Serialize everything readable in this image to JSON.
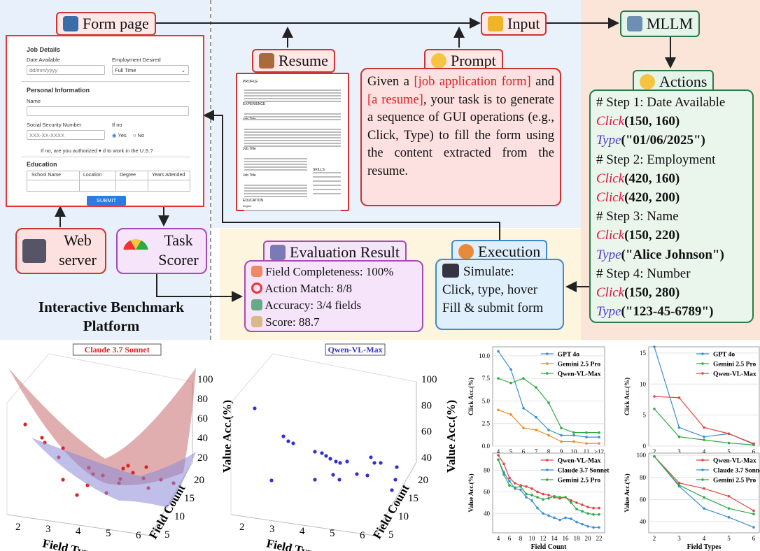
{
  "top": {
    "form_page_label": "Form page",
    "input_label": "Input",
    "mllm_label": "MLLM",
    "resume_label": "Resume",
    "prompt_label": "Prompt",
    "actions_label": "Actions",
    "web_server_label": [
      "Web",
      "server"
    ],
    "task_scorer_label": [
      "Task",
      "Scorer"
    ],
    "evaluation_label": "Evaluation Result",
    "execution_label": "Execution",
    "platform_title": [
      "Interactive Benchmark",
      "Platform"
    ]
  },
  "form": {
    "job_details": "Job Details",
    "date_available": "Date Available",
    "date_placeholder": "dd/mm/yyyy",
    "employment_desired": "Employment Desired",
    "employment_value": "Full Time",
    "personal_information": "Personal Information",
    "name": "Name",
    "ssn": "Social Security Number",
    "ssn_placeholder": "XXX-XX-XXXX",
    "if_no": "If no",
    "yes": "Yes",
    "no": "No",
    "authorized": "If no, are you authorized",
    "authorized_rest": "d to work in the U.S.?",
    "education": "Education",
    "columns": [
      "School Name",
      "Location",
      "Degree",
      "Years Attended"
    ],
    "submit": "SUBMIT"
  },
  "resume_doc": {
    "profile": "PROFILE",
    "experience": "EXPERIENCE",
    "job_title": "Job Title",
    "skills": "SKILLS",
    "education": "EDUCATION",
    "degree": "degree"
  },
  "prompt": {
    "t1": "Given a ",
    "hl1": "[job application form]",
    "t2": " and ",
    "hl2": "[a resume]",
    "t3": ", your task is to generate a sequence of GUI operations (e.g., Click, Type) to fill the form using the content extracted from the resume."
  },
  "actions": [
    {
      "kind": "comment",
      "text": "# Step 1: Date Available"
    },
    {
      "kind": "click",
      "fn": "Click",
      "args": "(150, 160)"
    },
    {
      "kind": "type",
      "fn": "Type",
      "args": "(\"01/06/2025\")"
    },
    {
      "kind": "comment",
      "text": "# Step 2: Employment"
    },
    {
      "kind": "click",
      "fn": "Click",
      "args": "(420, 160)"
    },
    {
      "kind": "click",
      "fn": "Click",
      "args": "(420, 200)"
    },
    {
      "kind": "comment",
      "text": "# Step 3: Name"
    },
    {
      "kind": "click",
      "fn": "Click",
      "args": "(150, 220)"
    },
    {
      "kind": "type",
      "fn": "Type",
      "args": "(\"Alice Johnson\")"
    },
    {
      "kind": "comment",
      "text": "# Step 4: Number"
    },
    {
      "kind": "click",
      "fn": "Click",
      "args": "(150, 280)"
    },
    {
      "kind": "type",
      "fn": "Type",
      "args": "(\"123-45-6789\")"
    }
  ],
  "evaluation": [
    "Field Completeness: 100%",
    "Action Match: 8/8",
    "Accuracy: 3/4 fields",
    "Score: 88.7"
  ],
  "execution": [
    "Simulate:",
    "Click, type, hover",
    "Fill & submit form"
  ],
  "colors": {
    "red": "#e02020",
    "green": "#2b7a4b",
    "purple": "#a44bb5",
    "blue": "#3b8bd0"
  },
  "chart_data": [
    {
      "type": "scatter",
      "title": "Claude 3.7 Sonnet",
      "xlabel": "Field Types",
      "ylabel": "Field Count",
      "zlabel": "Value Acc.(%)",
      "x_ticks": [
        "2",
        "3",
        "4",
        "5",
        "6"
      ],
      "y_ticks": [
        "5",
        "10",
        "15",
        "20"
      ],
      "z_ticks": [
        "20",
        "40",
        "60",
        "80",
        "100"
      ],
      "color": "#e02020"
    },
    {
      "type": "scatter",
      "title": "Qwen-VL-Max",
      "xlabel": "Field Types",
      "ylabel": "Field Count",
      "zlabel": "Value Acc.(%)",
      "x_ticks": [
        "2",
        "3",
        "4",
        "5",
        "6"
      ],
      "y_ticks": [
        "5",
        "10",
        "15",
        "20"
      ],
      "z_ticks": [
        "40",
        "60",
        "80",
        "100"
      ],
      "color": "#3030d0"
    },
    {
      "type": "line",
      "xlabel": "Field Count",
      "ylabel": "Click Acc.(%)",
      "categories": [
        "4",
        "5",
        "6",
        "7",
        "8",
        "9",
        "10",
        "11",
        ">12"
      ],
      "ylim": [
        0,
        11
      ],
      "y_ticks": [
        "0.0",
        "2.5",
        "5.0",
        "7.5",
        "10.0"
      ],
      "series": [
        {
          "name": "GPT 4o",
          "color": "#3a8fd6",
          "values": [
            10.5,
            8.5,
            4.2,
            3.2,
            1.8,
            1.2,
            1.2,
            1.0,
            1.0
          ]
        },
        {
          "name": "Gemini 2.5 Pro",
          "color": "#f08a24",
          "values": [
            4.0,
            3.5,
            2.0,
            1.8,
            1.2,
            0.5,
            0.5,
            0.3,
            0.3
          ]
        },
        {
          "name": "Qwen-VL-Max",
          "color": "#2eaa44",
          "values": [
            7.5,
            7.0,
            7.5,
            6.5,
            4.8,
            2.0,
            1.5,
            1.5,
            1.5
          ]
        }
      ]
    },
    {
      "type": "line",
      "xlabel": "Field Types",
      "ylabel": "Click Acc.(%)",
      "categories": [
        "2",
        "3",
        "4",
        "5",
        "6"
      ],
      "ylim": [
        0,
        16
      ],
      "y_ticks": [
        "0",
        "5",
        "10",
        "15"
      ],
      "series": [
        {
          "name": "GPT 4o",
          "color": "#3a8fd6",
          "values": [
            16.0,
            3.0,
            1.5,
            2.0,
            0.3
          ]
        },
        {
          "name": "Gemini 2.5 Pro",
          "color": "#2eaa44",
          "values": [
            6.0,
            1.5,
            1.0,
            0.5,
            0.2
          ]
        },
        {
          "name": "Qwen-VL-Max",
          "color": "#e84040",
          "values": [
            8.0,
            7.8,
            3.0,
            2.0,
            0.4
          ]
        }
      ]
    },
    {
      "type": "line",
      "xlabel": "Field Count",
      "ylabel": "Value Acc.(%)",
      "categories": [
        "4",
        "5",
        "6",
        "7",
        "8",
        "9",
        "10",
        "11",
        "12",
        "13",
        "14",
        "15",
        "16",
        "17",
        "18",
        "19",
        "20",
        "21",
        "22"
      ],
      "ylim": [
        22,
        96
      ],
      "y_ticks": [
        "40",
        "60",
        "80"
      ],
      "x_ticks": [
        "4",
        "6",
        "8",
        "10",
        "12",
        "14",
        "16",
        "18",
        "20",
        "22"
      ],
      "series": [
        {
          "name": "Qwen-VL-Max",
          "color": "#e84040",
          "values": [
            94,
            86,
            73,
            68,
            66,
            65,
            63,
            60,
            58,
            57,
            55,
            54,
            55,
            52,
            50,
            48,
            46,
            45,
            45
          ]
        },
        {
          "name": "Claude 3.7 Sonnet",
          "color": "#3a8fd6",
          "values": [
            90,
            78,
            70,
            63,
            62,
            55,
            52,
            45,
            40,
            38,
            36,
            34,
            36,
            35,
            32,
            30,
            28,
            27,
            27
          ]
        },
        {
          "name": "Gemini 2.5 Pro",
          "color": "#2eaa44",
          "values": [
            90,
            76,
            66,
            64,
            65,
            58,
            57,
            55,
            53,
            54,
            56,
            55,
            55,
            50,
            44,
            42,
            40,
            39,
            39
          ]
        }
      ]
    },
    {
      "type": "line",
      "xlabel": "Field Types",
      "ylabel": "Value Acc.(%)",
      "categories": [
        "2",
        "3",
        "4",
        "5",
        "6"
      ],
      "ylim": [
        30,
        102
      ],
      "y_ticks": [
        "40",
        "60",
        "80",
        "100"
      ],
      "series": [
        {
          "name": "Qwen-VL-Max",
          "color": "#e84040",
          "values": [
            99,
            75,
            70,
            63,
            50
          ]
        },
        {
          "name": "Claude 3.7 Sonnet",
          "color": "#3a8fd6",
          "values": [
            99,
            72,
            52,
            44,
            35
          ]
        },
        {
          "name": "Gemini 2.5 Pro",
          "color": "#2eaa44",
          "values": [
            99,
            73,
            62,
            52,
            47
          ]
        }
      ]
    }
  ]
}
